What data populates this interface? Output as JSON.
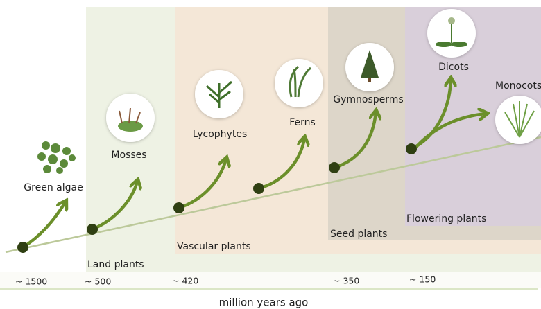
{
  "groups": [
    "Land plants",
    "Vascular plants",
    "Seed plants",
    "Flowering plants"
  ],
  "taxa": [
    "Green algae",
    "Mosses",
    "Lycophytes",
    "Ferns",
    "Gymnosperms",
    "Dicots",
    "Monocots"
  ],
  "time_labels": [
    "~ 1500",
    "~ 500",
    "~ 420",
    "~ 350",
    "~ 150"
  ],
  "axis_label": "million years ago"
}
